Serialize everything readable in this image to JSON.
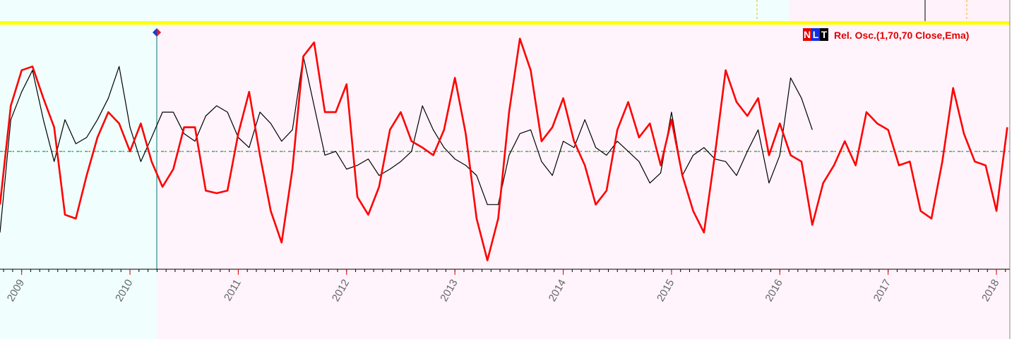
{
  "chart_data": {
    "type": "line",
    "legend": "Rel. Osc.(1,70,70 Close,Ema)",
    "indicator_buttons": [
      "N",
      "L",
      "T"
    ],
    "x": [
      2008.8,
      2008.9,
      2009.0,
      2009.1,
      2009.2,
      2009.3,
      2009.4,
      2009.5,
      2009.6,
      2009.7,
      2009.8,
      2009.9,
      2010.0,
      2010.1,
      2010.2,
      2010.3,
      2010.4,
      2010.5,
      2010.6,
      2010.7,
      2010.8,
      2010.9,
      2011.0,
      2011.1,
      2011.2,
      2011.3,
      2011.4,
      2011.5,
      2011.6,
      2011.7,
      2011.8,
      2011.9,
      2012.0,
      2012.1,
      2012.2,
      2012.3,
      2012.4,
      2012.5,
      2012.6,
      2012.7,
      2012.8,
      2012.9,
      2013.0,
      2013.1,
      2013.2,
      2013.3,
      2013.4,
      2013.5,
      2013.6,
      2013.7,
      2013.8,
      2013.9,
      2014.0,
      2014.1,
      2014.2,
      2014.3,
      2014.4,
      2014.5,
      2014.6,
      2014.7,
      2014.8,
      2014.9,
      2015.0,
      2015.1,
      2015.2,
      2015.3,
      2015.4,
      2015.5,
      2015.6,
      2015.7,
      2015.8,
      2015.9,
      2016.0,
      2016.1,
      2016.2,
      2016.3,
      2016.4,
      2016.5,
      2016.6,
      2016.7,
      2016.8,
      2016.9,
      2017.0,
      2017.1,
      2017.2,
      2017.3,
      2017.4,
      2017.5,
      2017.6,
      2017.7,
      2017.8,
      2017.9,
      2018.0,
      2018.1
    ],
    "series": [
      {
        "color": "#000000",
        "values": [
          -64,
          25,
          47,
          64,
          25,
          -8,
          25,
          6,
          11,
          25,
          42,
          67,
          19,
          -8,
          11,
          31,
          31,
          14,
          8,
          28,
          36,
          31,
          11,
          3,
          31,
          22,
          8,
          17,
          75,
          36,
          -3,
          0,
          -14,
          -11,
          -6,
          -19,
          -14,
          -8,
          0,
          36,
          17,
          3,
          -6,
          -11,
          -19,
          -42,
          -42,
          -3,
          14,
          17,
          -8,
          -19,
          8,
          3,
          25,
          3,
          -3,
          8,
          0,
          -8,
          -25,
          -17,
          31,
          -19,
          -3,
          3,
          -6,
          -8,
          -19,
          0,
          17,
          -25,
          -3,
          58,
          42,
          17,
          null,
          null,
          null,
          null,
          null,
          null,
          null,
          null,
          null,
          null,
          null,
          null,
          null,
          null,
          null,
          null,
          null,
          null
        ]
      },
      {
        "name": "Rel. Osc.(1,70,70 Close,Ema)",
        "color": "#ff0000",
        "values": [
          -42,
          36,
          64,
          67,
          42,
          19,
          -50,
          -53,
          -19,
          11,
          31,
          22,
          0,
          22,
          -8,
          -28,
          -14,
          19,
          19,
          -31,
          -33,
          -31,
          14,
          47,
          -3,
          -47,
          -72,
          -14,
          75,
          86,
          31,
          31,
          53,
          -36,
          -50,
          -28,
          17,
          31,
          8,
          3,
          -3,
          17,
          58,
          14,
          -53,
          -86,
          -53,
          31,
          89,
          64,
          8,
          19,
          42,
          8,
          -11,
          -42,
          -31,
          17,
          39,
          11,
          22,
          -11,
          25,
          -19,
          -47,
          -64,
          -3,
          64,
          39,
          28,
          42,
          -3,
          22,
          -3,
          -8,
          -58,
          -25,
          -11,
          8,
          -11,
          31,
          22,
          17,
          -11,
          -8,
          -47,
          -53,
          -8,
          50,
          14,
          -8,
          -11,
          -47,
          19
        ]
      }
    ],
    "reference_line": 0,
    "xlim": [
      2008.8,
      2018.13
    ],
    "ylim": [
      -93,
      100
    ],
    "xticks": [
      2009,
      2010,
      2011,
      2012,
      2013,
      2014,
      2015,
      2016,
      2017,
      2018
    ]
  }
}
